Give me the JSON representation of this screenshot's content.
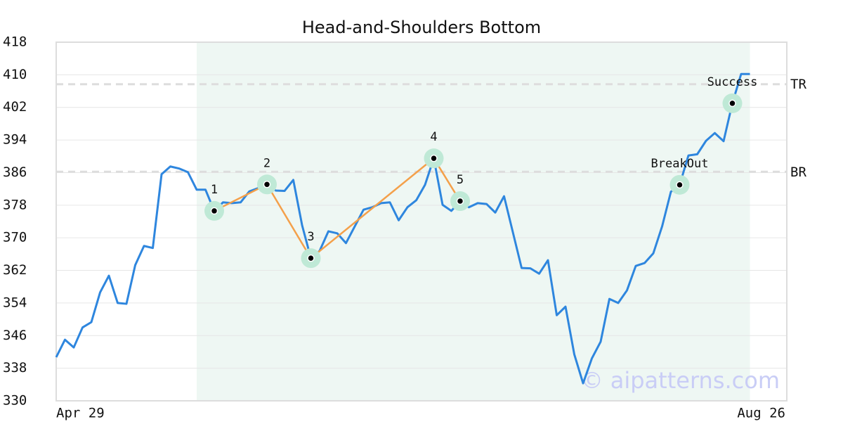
{
  "chart_data": {
    "type": "line",
    "title": "Head-and-Shoulders Bottom",
    "categories": [
      "Apr 29",
      null,
      null,
      null,
      null,
      null,
      null,
      null,
      null,
      null,
      null,
      null,
      null,
      null,
      null,
      null,
      null,
      null,
      null,
      null,
      null,
      null,
      null,
      null,
      null,
      null,
      null,
      null,
      null,
      null,
      null,
      null,
      null,
      null,
      null,
      null,
      null,
      null,
      null,
      null,
      null,
      null,
      null,
      null,
      null,
      null,
      null,
      null,
      null,
      null,
      null,
      null,
      null,
      null,
      null,
      null,
      null,
      null,
      null,
      null,
      null,
      null,
      null,
      null,
      null,
      null,
      null,
      null,
      null,
      null,
      null,
      null,
      null,
      null,
      null,
      null,
      null,
      null,
      null,
      "Aug 26"
    ],
    "series": [
      {
        "color": "#2e86de",
        "values": [
          340.7,
          345,
          343.1,
          348,
          349.3,
          356.6,
          360.7,
          354,
          353.8,
          363.3,
          368,
          367.5,
          385.6,
          387.5,
          387,
          386.1,
          381.8,
          381.8,
          376.6,
          378.7,
          378.5,
          378.7,
          381.4,
          382.2,
          383.1,
          381.6,
          381.5,
          384.2,
          373.1,
          365,
          366.8,
          371.6,
          371.1,
          368.7,
          372.8,
          376.9,
          377.5,
          378.5,
          378.7,
          374.3,
          377.5,
          379.2,
          383,
          389.5,
          378.1,
          376.6,
          379,
          377.5,
          378.5,
          378.3,
          376.2,
          380.2,
          371.4,
          362.6,
          362.5,
          361.2,
          364.5,
          351,
          353.1,
          341.4,
          334.3,
          340.4,
          344.5,
          355,
          354,
          357.1,
          363.1,
          363.8,
          366.2,
          372.8,
          381.3,
          383,
          390.2,
          390.5,
          393.8,
          395.7,
          393.7,
          403,
          410.2,
          410.2
        ]
      }
    ],
    "pattern_points": [
      {
        "label": "1",
        "index": 18,
        "value": 376.6
      },
      {
        "label": "2",
        "index": 24,
        "value": 383.1
      },
      {
        "label": "3",
        "index": 29,
        "value": 365
      },
      {
        "label": "4",
        "index": 43,
        "value": 389.5
      },
      {
        "label": "5",
        "index": 46,
        "value": 379
      }
    ],
    "pattern_color": "#f4a04a",
    "signal_points": [
      {
        "label": "BreakOut",
        "index": 71,
        "value": 383
      },
      {
        "label": "Success",
        "index": 77,
        "value": 403
      }
    ],
    "reference_lines": [
      {
        "label": "TR",
        "value": 407.7
      },
      {
        "label": "BR",
        "value": 386.2
      }
    ],
    "highlight_range": [
      16,
      79
    ],
    "watermark": "© aipatterns.com",
    "ylim": [
      330,
      418
    ],
    "yticks": [
      330,
      338,
      346,
      354,
      362,
      370,
      378,
      386,
      394,
      402,
      410,
      418
    ],
    "grid": true
  }
}
